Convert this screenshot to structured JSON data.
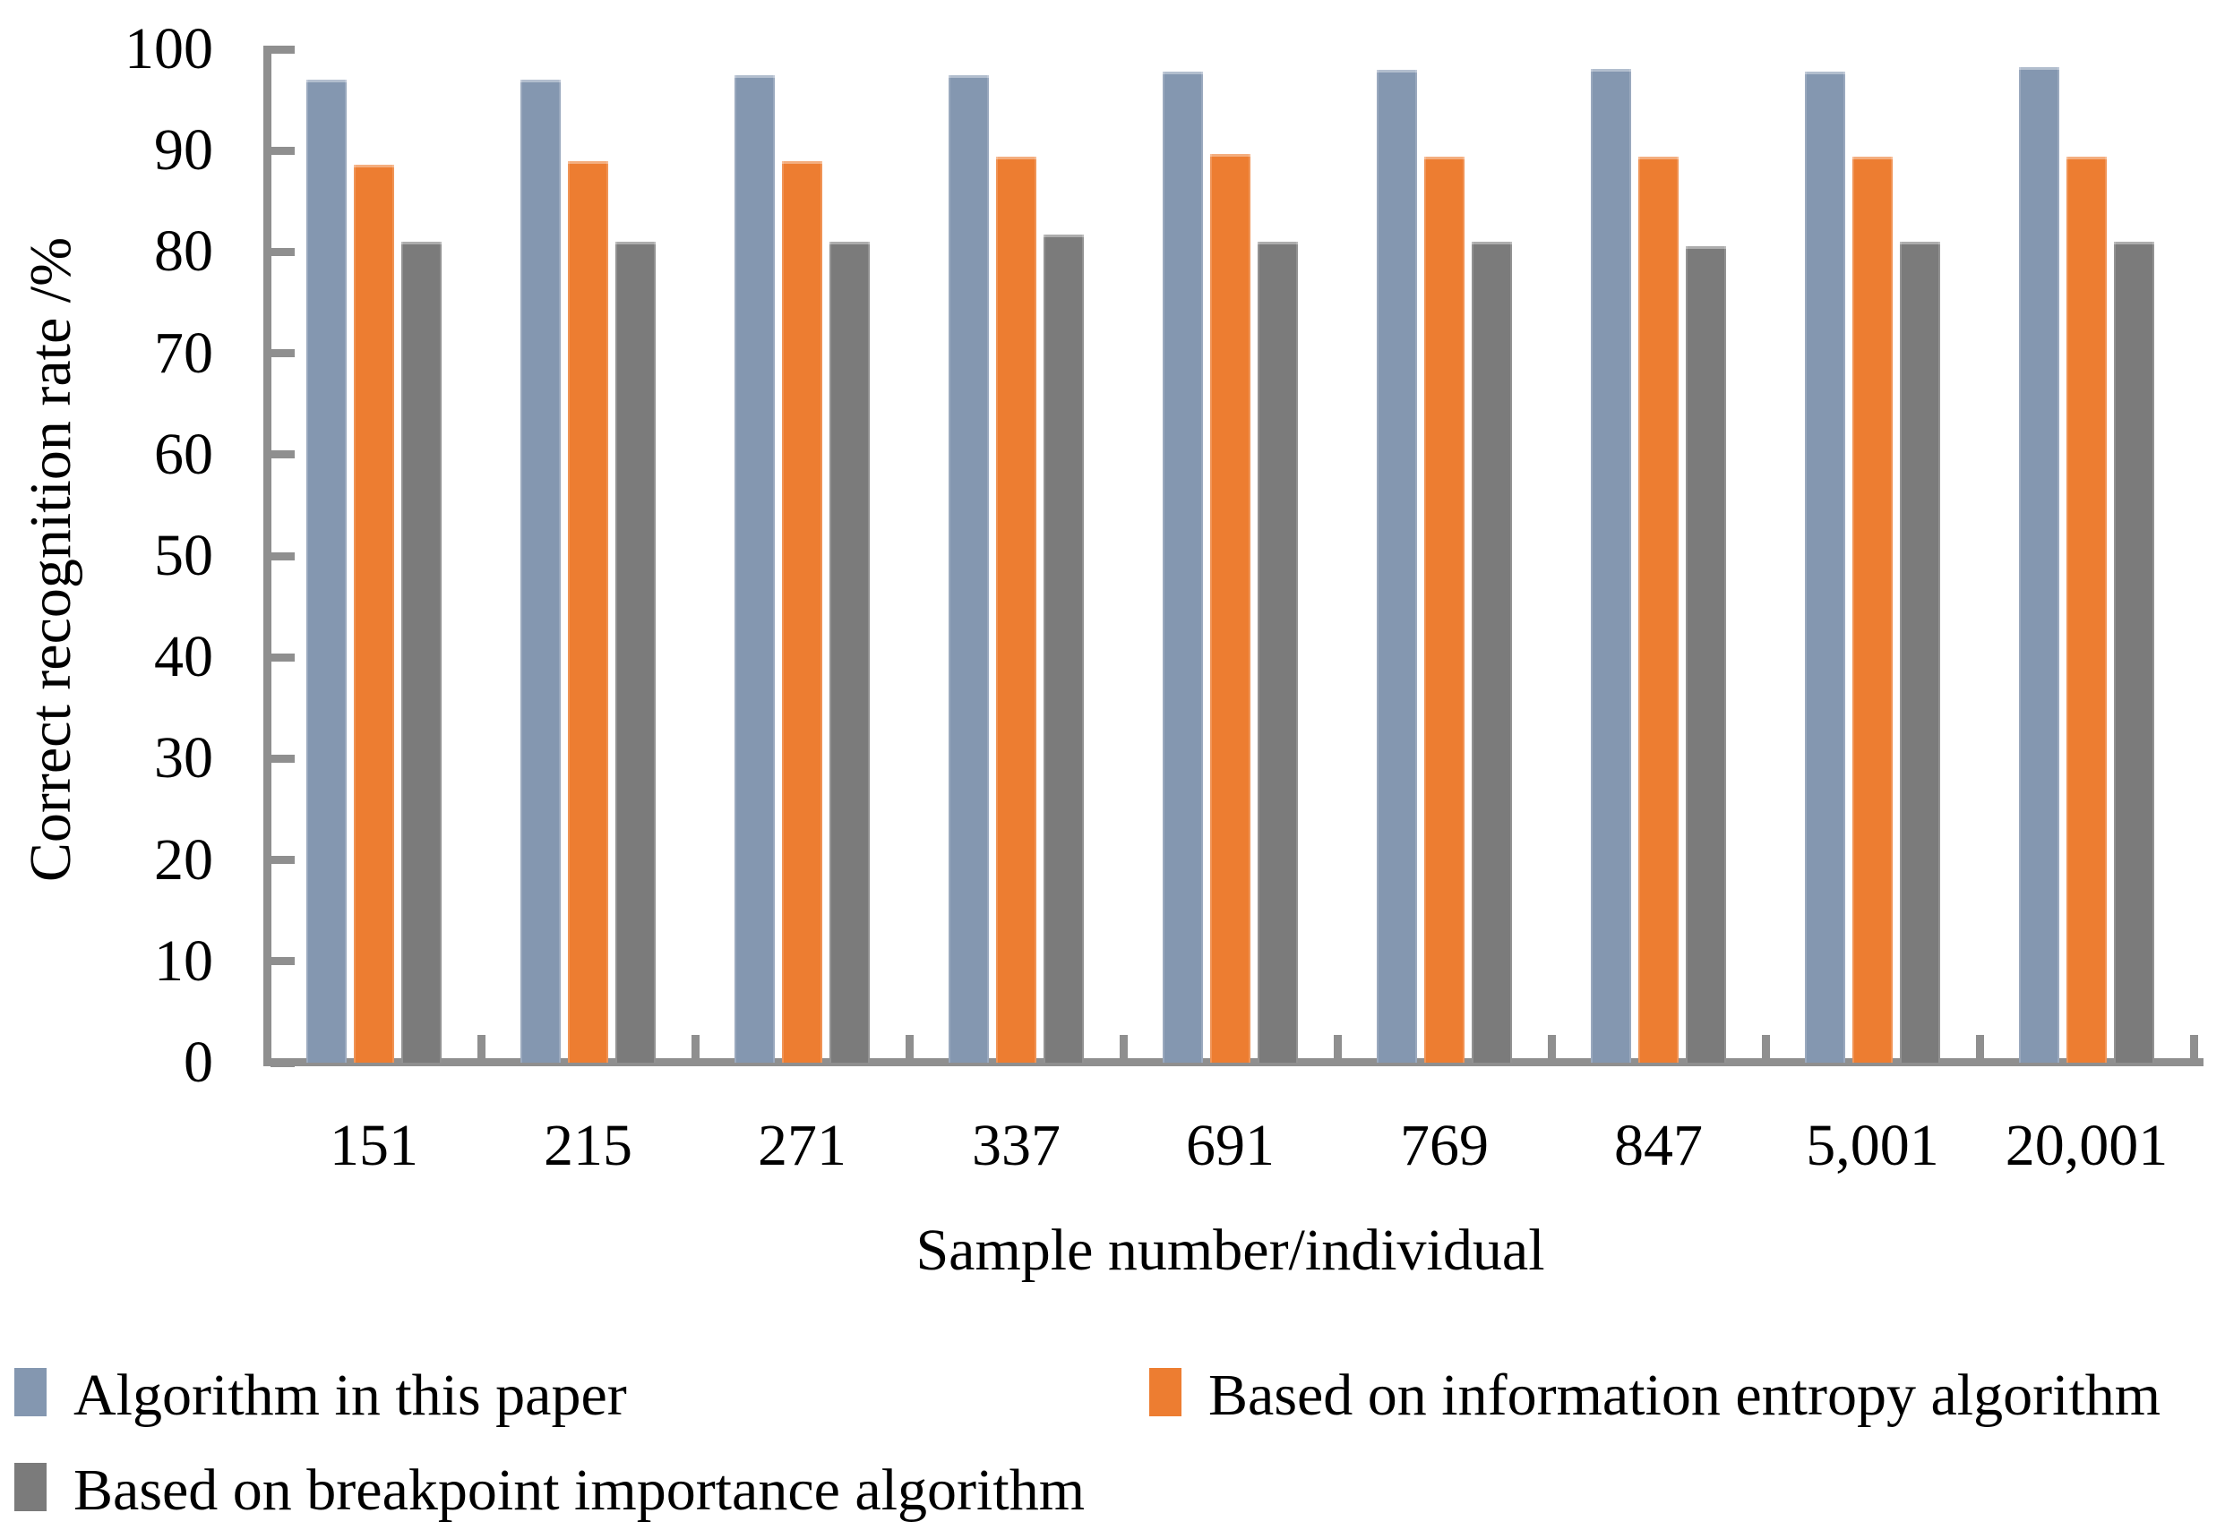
{
  "chart_data": {
    "type": "bar",
    "title": "",
    "xlabel": "Sample number/individual",
    "ylabel": "Correct recognition rate /%",
    "ylim": [
      0,
      100
    ],
    "ytick_step": 10,
    "ytick_labels": [
      "0",
      "10",
      "20",
      "30",
      "40",
      "50",
      "60",
      "70",
      "80",
      "90",
      "100"
    ],
    "categories": [
      "151",
      "215",
      "271",
      "337",
      "691",
      "769",
      "847",
      "5,001",
      "20,001"
    ],
    "series": [
      {
        "name": "Algorithm in this paper",
        "color": "#8497B0",
        "values": [
          97.0,
          97.0,
          97.4,
          97.4,
          97.8,
          98.0,
          98.1,
          97.8,
          98.2
        ]
      },
      {
        "name": "Based on information entropy algorithm",
        "color": "#ED7D31",
        "values": [
          88.6,
          89.0,
          89.0,
          89.4,
          89.7,
          89.4,
          89.4,
          89.4,
          89.4
        ]
      },
      {
        "name": "Based on breakpoint importance algorithm",
        "color": "#7B7B7B",
        "values": [
          81.0,
          81.0,
          81.0,
          81.7,
          81.0,
          81.0,
          80.6,
          81.0,
          81.0
        ]
      }
    ],
    "grid": "off",
    "legend_position": "bottom-left-two-columns",
    "axis_color": "#8f8f8f",
    "plot_background": "#ffffff"
  }
}
